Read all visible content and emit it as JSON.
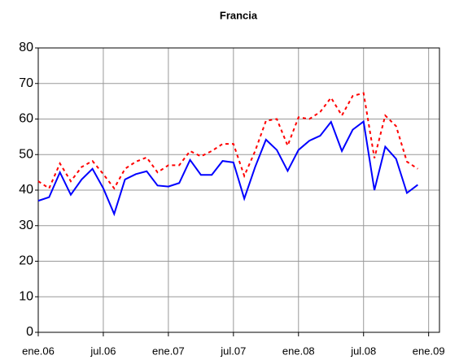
{
  "chart_data": {
    "type": "line",
    "title": "Francia",
    "x": [
      0,
      1,
      2,
      3,
      4,
      5,
      6,
      7,
      8,
      9,
      10,
      11,
      12,
      13,
      14,
      15,
      16,
      17,
      18,
      19,
      20,
      21,
      22,
      23,
      24,
      25,
      26,
      27,
      28,
      29,
      30,
      31,
      32,
      33,
      34,
      35
    ],
    "series": [
      {
        "color": "#0000ff",
        "style": "solid",
        "values": [
          37,
          38,
          45,
          38.7,
          43,
          46,
          40.5,
          33.3,
          43,
          44.5,
          45.3,
          41.3,
          41,
          42,
          48.5,
          44.3,
          44.3,
          48.2,
          47.8,
          37.6,
          46.5,
          54.2,
          51.3,
          45.4,
          51.3,
          53.9,
          55.3,
          59.2,
          51,
          57,
          59.3,
          40,
          52.2,
          48.8,
          39.2,
          41.5
        ]
      },
      {
        "color": "#ff0000",
        "style": "dotted",
        "values": [
          42.5,
          40.5,
          47.5,
          42.5,
          46.5,
          48.2,
          44.5,
          40.5,
          46,
          48,
          49.2,
          45,
          47,
          47,
          51,
          49.5,
          51,
          53,
          53,
          44,
          51,
          59.5,
          60,
          52.5,
          60.5,
          60,
          62,
          66,
          61,
          66.5,
          67.3,
          49,
          61,
          58,
          48,
          46
        ]
      }
    ],
    "xlim": [
      0,
      37
    ],
    "xticks": [
      {
        "value": 0,
        "label": "ene.06"
      },
      {
        "value": 6,
        "label": "jul.06"
      },
      {
        "value": 12,
        "label": "ene.07"
      },
      {
        "value": 18,
        "label": "jul.07"
      },
      {
        "value": 24,
        "label": "ene.08"
      },
      {
        "value": 30,
        "label": "jul.08"
      },
      {
        "value": 36,
        "label": "ene.09"
      }
    ],
    "ylim": [
      0,
      80
    ],
    "yticks": [
      0,
      10,
      20,
      30,
      40,
      50,
      60,
      70,
      80
    ],
    "grid": true
  }
}
